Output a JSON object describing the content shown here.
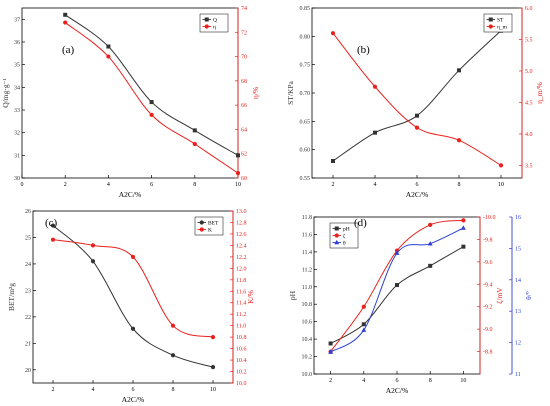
{
  "colors": {
    "black": "#333333",
    "red": "#e8211d",
    "blue": "#2b3fd6",
    "axis": "#000000"
  },
  "chart_data": [
    {
      "type": "line",
      "panel": "(a)",
      "xlabel": "A2C/%",
      "x": [
        2,
        4,
        6,
        8,
        10
      ],
      "xlim": [
        0,
        10
      ],
      "xticks": [
        0,
        2,
        4,
        6,
        8,
        10
      ],
      "left_axis": {
        "label": "Q/mg·g⁻¹",
        "lim": [
          30,
          37.5
        ],
        "ticks": [
          30,
          31,
          32,
          33,
          34,
          35,
          36,
          37
        ],
        "color": "black"
      },
      "right_axis": {
        "label": "η/%",
        "lim": [
          60,
          74
        ],
        "ticks": [
          60,
          62,
          64,
          66,
          68,
          70,
          72,
          74
        ],
        "color": "red"
      },
      "series": [
        {
          "name": "Q",
          "axis": "left",
          "color": "black",
          "marker": "square",
          "values": [
            37.2,
            35.8,
            33.35,
            32.1,
            31.0
          ]
        },
        {
          "name": "η",
          "axis": "right",
          "color": "red",
          "marker": "circle",
          "values": [
            72.8,
            70.0,
            65.2,
            62.8,
            60.4
          ]
        }
      ],
      "legend": "top-right",
      "grid": false
    },
    {
      "type": "line",
      "panel": "(b)",
      "xlabel": "A2C/%",
      "x": [
        2,
        4,
        6,
        8,
        10
      ],
      "xlim": [
        1,
        11
      ],
      "xticks": [
        2,
        4,
        6,
        8,
        10
      ],
      "left_axis": {
        "label": "ST/KPa",
        "lim": [
          0.55,
          0.85
        ],
        "ticks": [
          0.55,
          0.6,
          0.65,
          0.7,
          0.75,
          0.8,
          0.85
        ],
        "tick_labels": [
          "0.55",
          "0.60",
          "0.65",
          "0.70",
          "0.75",
          "0.80",
          "0.85"
        ],
        "color": "black"
      },
      "right_axis": {
        "label": "η_m/%",
        "lim": [
          3.3,
          6.0
        ],
        "ticks": [
          3.5,
          4.0,
          4.5,
          5.0,
          5.5,
          6.0
        ],
        "tick_labels": [
          "3.5",
          "4.0",
          "4.5",
          "5.0",
          "5.5",
          "6.0"
        ],
        "color": "red"
      },
      "series": [
        {
          "name": "ST",
          "axis": "left",
          "color": "black",
          "marker": "square",
          "values": [
            0.58,
            0.63,
            0.66,
            0.74,
            0.81
          ]
        },
        {
          "name": "η_m",
          "axis": "right",
          "color": "red",
          "marker": "circle",
          "values": [
            5.6,
            4.75,
            4.1,
            3.9,
            3.5
          ]
        }
      ],
      "legend": "top-right",
      "grid": false
    },
    {
      "type": "line",
      "panel": "(c)",
      "xlabel": "A2C/%",
      "x": [
        2,
        4,
        6,
        8,
        10
      ],
      "xlim": [
        1,
        11
      ],
      "xticks": [
        2,
        4,
        6,
        8,
        10
      ],
      "left_axis": {
        "label": "BET/m²g",
        "lim": [
          19.5,
          26
        ],
        "ticks": [
          20,
          21,
          22,
          23,
          24,
          25,
          26
        ],
        "color": "black"
      },
      "right_axis": {
        "label": "K/%",
        "lim": [
          10.0,
          13.0
        ],
        "ticks": [
          10.0,
          10.2,
          10.4,
          10.6,
          10.8,
          11.0,
          11.2,
          11.4,
          11.6,
          11.8,
          12.0,
          12.2,
          12.4,
          12.6,
          12.8,
          13.0
        ],
        "tick_labels": [
          "10.0",
          "10.2",
          "10.4",
          "10.6",
          "10.8",
          "11.0",
          "11.2",
          "11.4",
          "11.6",
          "11.8",
          "12.0",
          "12.2",
          "12.4",
          "12.6",
          "12.8",
          "13.0"
        ],
        "color": "red"
      },
      "series": [
        {
          "name": "BET",
          "axis": "left",
          "color": "black",
          "marker": "circle",
          "values": [
            25.45,
            24.1,
            21.55,
            20.55,
            20.1
          ]
        },
        {
          "name": "K",
          "axis": "right",
          "color": "red",
          "marker": "circle",
          "values": [
            12.5,
            12.4,
            12.2,
            11.0,
            10.8
          ]
        }
      ],
      "legend": "top-right",
      "grid": false
    },
    {
      "type": "line",
      "panel": "(d)",
      "xlabel": "A2C/%",
      "x": [
        2,
        4,
        6,
        8,
        10
      ],
      "xlim": [
        1,
        11
      ],
      "xticks": [
        2,
        4,
        6,
        8,
        10
      ],
      "left_axis": {
        "label": "pH",
        "lim": [
          10.0,
          11.8
        ],
        "ticks": [
          10.0,
          10.2,
          10.4,
          10.6,
          10.8,
          11.0,
          11.2,
          11.4,
          11.6,
          11.8
        ],
        "tick_labels": [
          "10.0",
          "10.2",
          "10.4",
          "10.6",
          "10.8",
          "11.0",
          "11.2",
          "11.4",
          "11.6",
          "11.8"
        ],
        "color": "black"
      },
      "right_axis": {
        "label": "ζ/mV",
        "lim": [
          -10.0,
          -8.6
        ],
        "ticks": [
          -8.8,
          -9.0,
          -9.2,
          -9.4,
          -9.6,
          -9.8,
          -10.0
        ],
        "tick_labels": [
          "-8.8",
          "-9.0",
          "-9.2",
          "-9.4",
          "-9.6",
          "-9.8",
          "-10.0"
        ],
        "inverted": true,
        "color": "red"
      },
      "far_right_axis": {
        "label": "θ/°",
        "lim": [
          11,
          16
        ],
        "ticks": [
          11,
          12,
          13,
          14,
          15,
          16
        ],
        "color": "blue"
      },
      "series": [
        {
          "name": "pH",
          "axis": "left",
          "color": "black",
          "marker": "square",
          "values": [
            10.35,
            10.57,
            11.02,
            11.24,
            11.46
          ]
        },
        {
          "name": "ζ",
          "axis": "right",
          "color": "red",
          "marker": "circle",
          "values": [
            -8.8,
            -9.2,
            -9.7,
            -9.93,
            -9.97
          ]
        },
        {
          "name": "θ",
          "axis": "far_right",
          "color": "blue",
          "marker": "triangle",
          "values": [
            11.7,
            12.4,
            14.85,
            15.15,
            15.65
          ]
        }
      ],
      "legend": "top-left",
      "grid": false
    }
  ]
}
